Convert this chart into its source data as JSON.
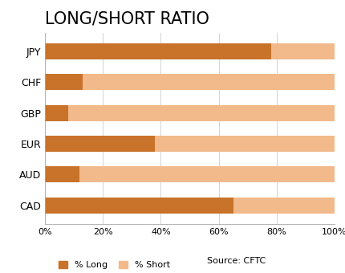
{
  "title": "LONG/SHORT RATIO",
  "categories": [
    "CAD",
    "AUD",
    "EUR",
    "GBP",
    "CHF",
    "JPY"
  ],
  "long_values": [
    65,
    12,
    38,
    8,
    13,
    78
  ],
  "short_values": [
    35,
    88,
    62,
    92,
    87,
    22
  ],
  "color_long": "#C8722A",
  "color_short": "#F2B98A",
  "xlabel_ticks": [
    "0%",
    "20%",
    "40%",
    "60%",
    "80%",
    "100%"
  ],
  "xtick_values": [
    0,
    20,
    40,
    60,
    80,
    100
  ],
  "legend_long": "% Long",
  "legend_short": "% Short",
  "source_text": "Source: CFTC",
  "title_fontsize": 15,
  "label_fontsize": 9,
  "tick_fontsize": 8,
  "bar_height": 0.52,
  "background_color": "#FFFFFF",
  "grid_color": "#CCCCCC"
}
